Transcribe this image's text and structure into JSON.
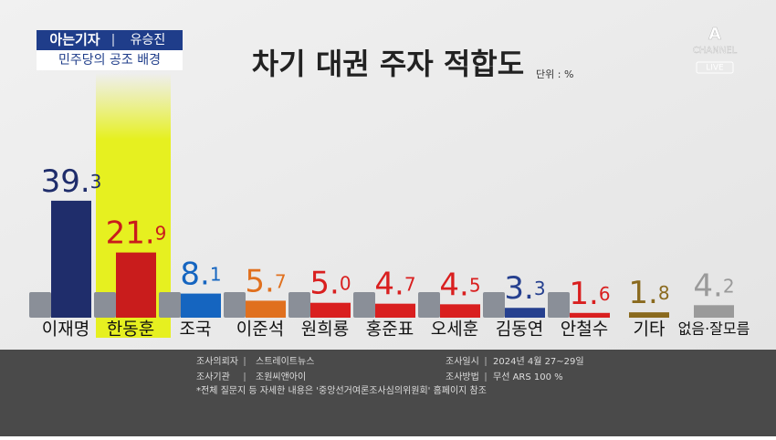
{
  "header": {
    "tag": "아는기자",
    "reporter": "유승진",
    "subtitle": "민주당의 공조 배경"
  },
  "logo": {
    "mark": "A",
    "name": "CHANNEL",
    "live": "LIVE"
  },
  "chart_data": {
    "type": "bar",
    "title": "차기 대권 주자 적합도",
    "unit": "단위 : %",
    "categories": [
      "이재명",
      "한동훈",
      "조국",
      "이준석",
      "원희룡",
      "홍준표",
      "오세훈",
      "김동연",
      "안철수",
      "기타",
      "없음·잘모름"
    ],
    "values": [
      39.3,
      21.9,
      8.1,
      5.7,
      5.0,
      4.7,
      4.5,
      3.3,
      1.6,
      1.8,
      4.2
    ],
    "value_labels": [
      "39.3",
      "21.9",
      "8.1",
      "5.7",
      "5.0",
      "4.7",
      "4.5",
      "3.3",
      "1.6",
      "1.8",
      "4.2"
    ],
    "colors": [
      "#1f2d6b",
      "#c91c1c",
      "#1565c0",
      "#e0701e",
      "#d91f1f",
      "#d91f1f",
      "#d91f1f",
      "#26408f",
      "#d91f1f",
      "#8a6a1e",
      "#9a9a9a"
    ],
    "highlight": 1
  },
  "footer": {
    "rows": [
      [
        "조사의뢰자",
        "스트레이트뉴스",
        "조사일시",
        "2024년 4월 27~29일"
      ],
      [
        "조사기관",
        "조원씨앤아이",
        "조사방법",
        "무선 ARS 100 %"
      ]
    ],
    "note": "*전체 질문지 등 자세한 내용은 '중앙선거여론조사심의위원회' 홈페이지 참조"
  }
}
